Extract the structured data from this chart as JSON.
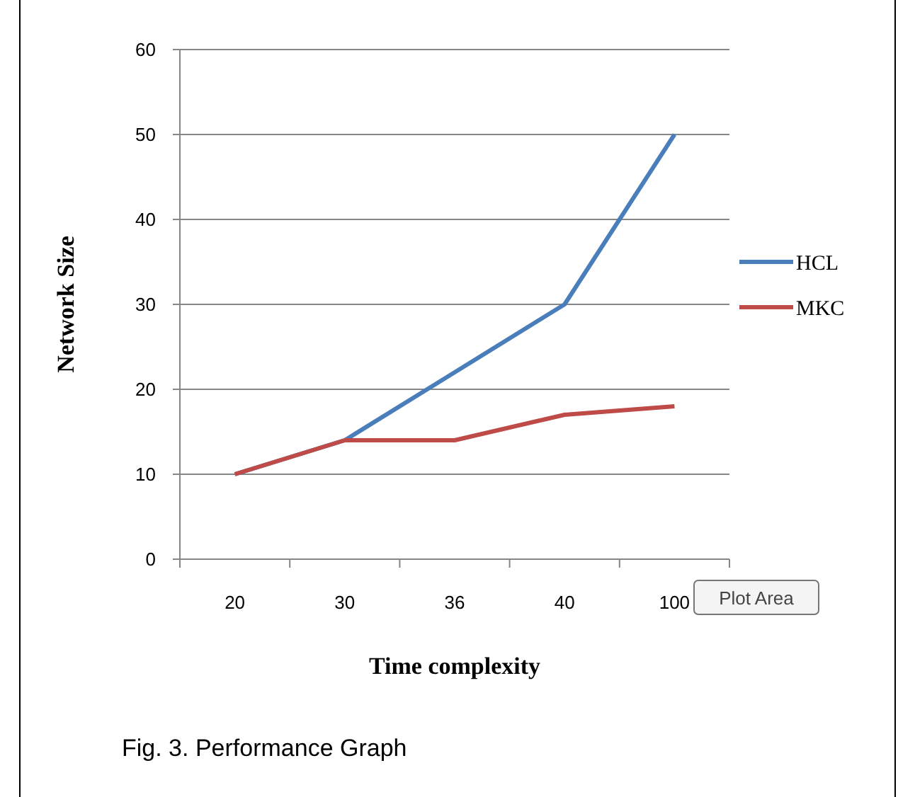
{
  "chart_data": {
    "type": "line",
    "xlabel": "Time complexity",
    "ylabel": "Network Size",
    "categories": [
      "20",
      "30",
      "36",
      "40",
      "100"
    ],
    "series": [
      {
        "name": "HCL",
        "color": "#4a7ebb",
        "values": [
          10,
          14,
          22,
          30,
          50
        ]
      },
      {
        "name": "MKC",
        "color": "#be4b48",
        "values": [
          10,
          14,
          14,
          17,
          18
        ]
      }
    ],
    "ylim": [
      0,
      60
    ],
    "yticks": [
      0,
      10,
      20,
      30,
      40,
      50,
      60
    ],
    "grid": "y",
    "legend": "right",
    "marker": "none",
    "line_style": "solid",
    "annotations": [
      "Plot Area",
      "Fig. 3. Performance Graph"
    ]
  }
}
